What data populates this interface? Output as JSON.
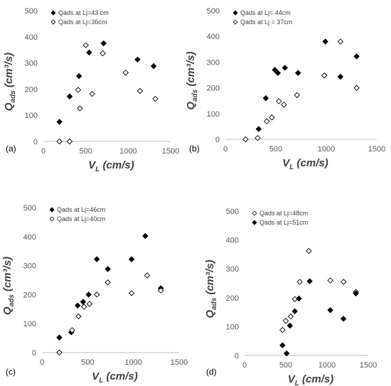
{
  "chart_data": [
    {
      "panel": "(a)",
      "type": "scatter",
      "xlabel": "V",
      "xlabel_sub": "L",
      "xlabel_unit": "(cm/s)",
      "ylabel": "Q",
      "ylabel_sub": "ads",
      "ylabel_unit": "(cm³/s)",
      "xlim": [
        0,
        1500
      ],
      "ylim": [
        0,
        500
      ],
      "xticks": [
        0,
        500,
        1000,
        1500
      ],
      "yticks": [
        0,
        100,
        200,
        300,
        400,
        500
      ],
      "legend_position": "top-left",
      "series": [
        {
          "name": "Qads at Lj=43 cm",
          "marker": "filled-diamond",
          "points": [
            [
              190,
              75
            ],
            [
              310,
              172
            ],
            [
              420,
              250
            ],
            [
              540,
              340
            ],
            [
              710,
              375
            ],
            [
              1110,
              313
            ],
            [
              1300,
              288
            ]
          ]
        },
        {
          "name": "Qads at Lj=36cm",
          "marker": "open-diamond",
          "points": [
            [
              190,
              0
            ],
            [
              310,
              0
            ],
            [
              410,
              197
            ],
            [
              430,
              127
            ],
            [
              500,
              368
            ],
            [
              575,
              182
            ],
            [
              700,
              337
            ],
            [
              970,
              263
            ],
            [
              1140,
              193
            ],
            [
              1320,
              163
            ]
          ]
        }
      ]
    },
    {
      "panel": "(b)",
      "type": "scatter",
      "xlabel": "V",
      "xlabel_sub": "L",
      "xlabel_unit": "(cm/s)",
      "ylabel": "Q",
      "ylabel_sub": "ads",
      "ylabel_unit": "(cm³/s)",
      "xlim": [
        0,
        1500
      ],
      "ylim": [
        0,
        500
      ],
      "xticks": [
        0,
        500,
        1000,
        1500
      ],
      "yticks": [
        0,
        100,
        200,
        300,
        400,
        500
      ],
      "legend_position": "top-left",
      "series": [
        {
          "name": "Qads at Lj= 44cm",
          "marker": "filled-diamond",
          "points": [
            [
              330,
              40
            ],
            [
              400,
              160
            ],
            [
              490,
              270
            ],
            [
              520,
              258
            ],
            [
              590,
              278
            ],
            [
              720,
              258
            ],
            [
              990,
              380
            ],
            [
              1140,
              243
            ],
            [
              1300,
              322
            ]
          ]
        },
        {
          "name": "Qads at Lj = 37cm",
          "marker": "open-diamond",
          "points": [
            [
              200,
              0
            ],
            [
              320,
              5
            ],
            [
              410,
              70
            ],
            [
              460,
              85
            ],
            [
              530,
              148
            ],
            [
              580,
              135
            ],
            [
              710,
              172
            ],
            [
              980,
              248
            ],
            [
              1140,
              380
            ],
            [
              1300,
              200
            ]
          ]
        }
      ]
    },
    {
      "panel": "(c)",
      "type": "scatter",
      "xlabel": "V",
      "xlabel_sub": "L",
      "xlabel_unit": "(cm/s)",
      "ylabel": "Q",
      "ylabel_sub": "ads",
      "ylabel_unit": "(cm³/s)",
      "xlim": [
        0,
        1500
      ],
      "ylim": [
        0,
        500
      ],
      "xticks": [
        0,
        500,
        1000,
        1500
      ],
      "yticks": [
        0,
        100,
        200,
        300,
        400,
        500
      ],
      "legend_position": "top-left",
      "series": [
        {
          "name": "Qads at Lj=46cm",
          "marker": "filled-diamond",
          "points": [
            [
              190,
              52
            ],
            [
              320,
              70
            ],
            [
              390,
              162
            ],
            [
              450,
              175
            ],
            [
              510,
              200
            ],
            [
              600,
              322
            ],
            [
              720,
              288
            ],
            [
              980,
              322
            ],
            [
              1130,
              402
            ],
            [
              1300,
              222
            ]
          ]
        },
        {
          "name": "Qads at Lj=40cm",
          "marker": "open-diamond",
          "points": [
            [
              190,
              0
            ],
            [
              330,
              77
            ],
            [
              400,
              125
            ],
            [
              460,
              158
            ],
            [
              520,
              168
            ],
            [
              600,
              200
            ],
            [
              720,
              242
            ],
            [
              980,
              205
            ],
            [
              1150,
              266
            ],
            [
              1300,
              214
            ]
          ]
        }
      ]
    },
    {
      "panel": "(d)",
      "type": "scatter",
      "xlabel": "V",
      "xlabel_sub": "L",
      "xlabel_unit": "(cm/s)",
      "ylabel": "Q",
      "ylabel_sub": "ads",
      "ylabel_unit": "(cm³/s)",
      "xlim": [
        0,
        1500
      ],
      "ylim": [
        0,
        500
      ],
      "xticks": [
        0,
        500,
        1000,
        1500
      ],
      "yticks": [
        0,
        100,
        200,
        300,
        400,
        500
      ],
      "legend_position": "top-left",
      "series": [
        {
          "name": "Qads at Lj=48cm",
          "marker": "open-diamond",
          "points": [
            [
              460,
              88
            ],
            [
              500,
              120
            ],
            [
              560,
              135
            ],
            [
              610,
              195
            ],
            [
              670,
              255
            ],
            [
              780,
              362
            ],
            [
              1040,
              260
            ],
            [
              1200,
              255
            ],
            [
              1350,
              220
            ]
          ]
        },
        {
          "name": "Qads at Lj=51cm",
          "marker": "filled-diamond",
          "points": [
            [
              460,
              35
            ],
            [
              510,
              7
            ],
            [
              550,
              103
            ],
            [
              610,
              153
            ],
            [
              660,
              197
            ],
            [
              790,
              257
            ],
            [
              1040,
              157
            ],
            [
              1200,
              127
            ],
            [
              1350,
              215
            ]
          ]
        }
      ]
    }
  ]
}
